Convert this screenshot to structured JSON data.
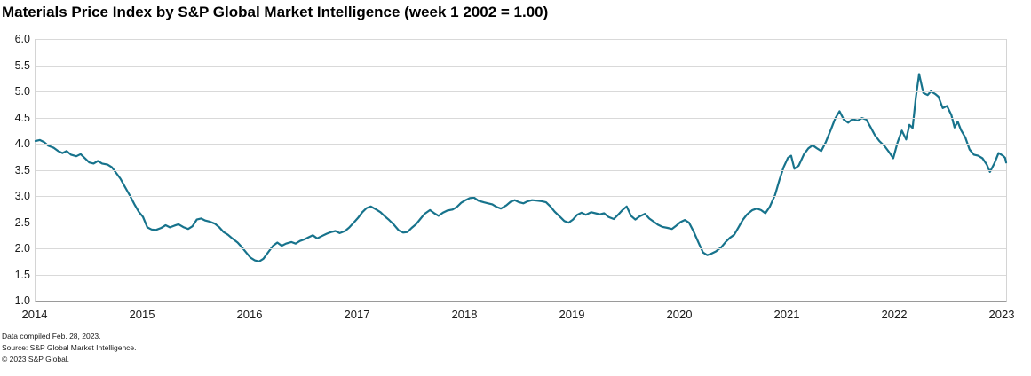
{
  "title": "Materials Price Index by S&P Global Market Intelligence (week 1 2002 = 1.00)",
  "footnotes": [
    "Data compiled Feb. 28, 2023.",
    "Source: S&P Global Market Intelligence.",
    "© 2023 S&P Global."
  ],
  "colors": {
    "line": "#17738c",
    "gridline": "#d9d9d9",
    "axis": "#9a9a9a",
    "text": "#1a1a1a",
    "title_text": "#000000"
  },
  "chart_data": {
    "type": "line",
    "title": "Materials Price Index by S&P Global Market Intelligence (week 1 2002 = 1.00)",
    "xlabel": "",
    "ylabel": "",
    "xlim": [
      2014,
      2023.03
    ],
    "ylim": [
      1.0,
      6.0
    ],
    "grid": "horizontal",
    "legend": "none",
    "x_ticks": {
      "values": [
        2014,
        2015,
        2016,
        2017,
        2018,
        2019,
        2020,
        2021,
        2022,
        2023
      ],
      "labels": [
        "2014",
        "2015",
        "2016",
        "2017",
        "2018",
        "2019",
        "2020",
        "2021",
        "2022",
        "2023"
      ]
    },
    "y_ticks": {
      "values": [
        6.0,
        5.5,
        5.0,
        4.5,
        4.0,
        3.5,
        3.0,
        2.5,
        2.0,
        1.5,
        1.0
      ],
      "labels": [
        "6.0",
        "5.5",
        "5.0",
        "4.5",
        "4.0",
        "3.5",
        "3.0",
        "2.5",
        "2.0",
        "1.5",
        "1.0"
      ]
    },
    "series": [
      {
        "name": "Materials Price Index",
        "color": "#17738c",
        "points": [
          [
            2014.0,
            4.05
          ],
          [
            2014.04,
            4.07
          ],
          [
            2014.08,
            4.03
          ],
          [
            2014.12,
            3.96
          ],
          [
            2014.17,
            3.92
          ],
          [
            2014.21,
            3.86
          ],
          [
            2014.25,
            3.82
          ],
          [
            2014.29,
            3.86
          ],
          [
            2014.33,
            3.79
          ],
          [
            2014.38,
            3.76
          ],
          [
            2014.42,
            3.8
          ],
          [
            2014.46,
            3.72
          ],
          [
            2014.5,
            3.64
          ],
          [
            2014.54,
            3.62
          ],
          [
            2014.58,
            3.67
          ],
          [
            2014.62,
            3.62
          ],
          [
            2014.67,
            3.6
          ],
          [
            2014.71,
            3.55
          ],
          [
            2014.75,
            3.44
          ],
          [
            2014.79,
            3.33
          ],
          [
            2014.83,
            3.18
          ],
          [
            2014.88,
            3.0
          ],
          [
            2014.92,
            2.84
          ],
          [
            2014.96,
            2.7
          ],
          [
            2015.0,
            2.6
          ],
          [
            2015.04,
            2.4
          ],
          [
            2015.08,
            2.36
          ],
          [
            2015.12,
            2.35
          ],
          [
            2015.17,
            2.39
          ],
          [
            2015.21,
            2.44
          ],
          [
            2015.25,
            2.4
          ],
          [
            2015.29,
            2.43
          ],
          [
            2015.33,
            2.46
          ],
          [
            2015.38,
            2.4
          ],
          [
            2015.42,
            2.37
          ],
          [
            2015.46,
            2.42
          ],
          [
            2015.5,
            2.55
          ],
          [
            2015.54,
            2.57
          ],
          [
            2015.58,
            2.53
          ],
          [
            2015.62,
            2.51
          ],
          [
            2015.67,
            2.47
          ],
          [
            2015.71,
            2.4
          ],
          [
            2015.75,
            2.31
          ],
          [
            2015.79,
            2.26
          ],
          [
            2015.83,
            2.19
          ],
          [
            2015.88,
            2.11
          ],
          [
            2015.92,
            2.02
          ],
          [
            2015.96,
            1.92
          ],
          [
            2016.0,
            1.82
          ],
          [
            2016.04,
            1.77
          ],
          [
            2016.08,
            1.75
          ],
          [
            2016.12,
            1.8
          ],
          [
            2016.17,
            1.94
          ],
          [
            2016.21,
            2.05
          ],
          [
            2016.25,
            2.11
          ],
          [
            2016.29,
            2.05
          ],
          [
            2016.33,
            2.09
          ],
          [
            2016.38,
            2.12
          ],
          [
            2016.42,
            2.09
          ],
          [
            2016.46,
            2.14
          ],
          [
            2016.5,
            2.17
          ],
          [
            2016.54,
            2.21
          ],
          [
            2016.58,
            2.25
          ],
          [
            2016.62,
            2.19
          ],
          [
            2016.67,
            2.24
          ],
          [
            2016.71,
            2.28
          ],
          [
            2016.75,
            2.31
          ],
          [
            2016.79,
            2.33
          ],
          [
            2016.83,
            2.29
          ],
          [
            2016.88,
            2.33
          ],
          [
            2016.92,
            2.4
          ],
          [
            2016.96,
            2.49
          ],
          [
            2017.0,
            2.58
          ],
          [
            2017.04,
            2.69
          ],
          [
            2017.08,
            2.77
          ],
          [
            2017.12,
            2.8
          ],
          [
            2017.17,
            2.74
          ],
          [
            2017.21,
            2.69
          ],
          [
            2017.25,
            2.61
          ],
          [
            2017.29,
            2.54
          ],
          [
            2017.33,
            2.46
          ],
          [
            2017.38,
            2.34
          ],
          [
            2017.42,
            2.3
          ],
          [
            2017.46,
            2.31
          ],
          [
            2017.5,
            2.39
          ],
          [
            2017.54,
            2.46
          ],
          [
            2017.58,
            2.56
          ],
          [
            2017.62,
            2.66
          ],
          [
            2017.67,
            2.73
          ],
          [
            2017.71,
            2.67
          ],
          [
            2017.75,
            2.62
          ],
          [
            2017.79,
            2.68
          ],
          [
            2017.83,
            2.72
          ],
          [
            2017.88,
            2.74
          ],
          [
            2017.92,
            2.79
          ],
          [
            2017.96,
            2.87
          ],
          [
            2018.0,
            2.92
          ],
          [
            2018.04,
            2.96
          ],
          [
            2018.08,
            2.97
          ],
          [
            2018.12,
            2.91
          ],
          [
            2018.17,
            2.88
          ],
          [
            2018.21,
            2.86
          ],
          [
            2018.25,
            2.84
          ],
          [
            2018.29,
            2.79
          ],
          [
            2018.33,
            2.76
          ],
          [
            2018.38,
            2.82
          ],
          [
            2018.42,
            2.89
          ],
          [
            2018.46,
            2.92
          ],
          [
            2018.5,
            2.88
          ],
          [
            2018.54,
            2.86
          ],
          [
            2018.58,
            2.9
          ],
          [
            2018.62,
            2.92
          ],
          [
            2018.67,
            2.91
          ],
          [
            2018.71,
            2.9
          ],
          [
            2018.75,
            2.88
          ],
          [
            2018.79,
            2.8
          ],
          [
            2018.83,
            2.7
          ],
          [
            2018.88,
            2.6
          ],
          [
            2018.92,
            2.52
          ],
          [
            2018.96,
            2.49
          ],
          [
            2019.0,
            2.55
          ],
          [
            2019.04,
            2.64
          ],
          [
            2019.08,
            2.68
          ],
          [
            2019.12,
            2.64
          ],
          [
            2019.17,
            2.69
          ],
          [
            2019.21,
            2.67
          ],
          [
            2019.25,
            2.65
          ],
          [
            2019.29,
            2.67
          ],
          [
            2019.33,
            2.6
          ],
          [
            2019.38,
            2.56
          ],
          [
            2019.42,
            2.64
          ],
          [
            2019.46,
            2.73
          ],
          [
            2019.5,
            2.8
          ],
          [
            2019.54,
            2.62
          ],
          [
            2019.58,
            2.55
          ],
          [
            2019.62,
            2.61
          ],
          [
            2019.67,
            2.66
          ],
          [
            2019.71,
            2.57
          ],
          [
            2019.75,
            2.51
          ],
          [
            2019.79,
            2.45
          ],
          [
            2019.83,
            2.41
          ],
          [
            2019.88,
            2.39
          ],
          [
            2019.92,
            2.37
          ],
          [
            2019.96,
            2.43
          ],
          [
            2020.0,
            2.5
          ],
          [
            2020.04,
            2.54
          ],
          [
            2020.08,
            2.49
          ],
          [
            2020.12,
            2.33
          ],
          [
            2020.17,
            2.1
          ],
          [
            2020.21,
            1.92
          ],
          [
            2020.25,
            1.87
          ],
          [
            2020.29,
            1.9
          ],
          [
            2020.33,
            1.94
          ],
          [
            2020.38,
            2.02
          ],
          [
            2020.42,
            2.12
          ],
          [
            2020.46,
            2.2
          ],
          [
            2020.5,
            2.26
          ],
          [
            2020.54,
            2.4
          ],
          [
            2020.58,
            2.54
          ],
          [
            2020.62,
            2.65
          ],
          [
            2020.67,
            2.73
          ],
          [
            2020.71,
            2.76
          ],
          [
            2020.75,
            2.73
          ],
          [
            2020.79,
            2.67
          ],
          [
            2020.83,
            2.79
          ],
          [
            2020.88,
            3.02
          ],
          [
            2020.92,
            3.3
          ],
          [
            2020.96,
            3.55
          ],
          [
            2021.0,
            3.73
          ],
          [
            2021.03,
            3.77
          ],
          [
            2021.06,
            3.52
          ],
          [
            2021.1,
            3.58
          ],
          [
            2021.15,
            3.8
          ],
          [
            2021.19,
            3.91
          ],
          [
            2021.23,
            3.97
          ],
          [
            2021.27,
            3.91
          ],
          [
            2021.31,
            3.86
          ],
          [
            2021.35,
            4.02
          ],
          [
            2021.4,
            4.27
          ],
          [
            2021.44,
            4.48
          ],
          [
            2021.48,
            4.62
          ],
          [
            2021.52,
            4.46
          ],
          [
            2021.56,
            4.4
          ],
          [
            2021.6,
            4.47
          ],
          [
            2021.65,
            4.44
          ],
          [
            2021.69,
            4.49
          ],
          [
            2021.73,
            4.46
          ],
          [
            2021.77,
            4.31
          ],
          [
            2021.81,
            4.16
          ],
          [
            2021.85,
            4.05
          ],
          [
            2021.9,
            3.95
          ],
          [
            2021.94,
            3.84
          ],
          [
            2021.98,
            3.72
          ],
          [
            2022.02,
            4.02
          ],
          [
            2022.06,
            4.25
          ],
          [
            2022.1,
            4.08
          ],
          [
            2022.13,
            4.36
          ],
          [
            2022.16,
            4.3
          ],
          [
            2022.19,
            4.88
          ],
          [
            2022.22,
            5.33
          ],
          [
            2022.26,
            4.97
          ],
          [
            2022.3,
            4.93
          ],
          [
            2022.33,
            5.0
          ],
          [
            2022.37,
            4.95
          ],
          [
            2022.4,
            4.9
          ],
          [
            2022.44,
            4.68
          ],
          [
            2022.48,
            4.72
          ],
          [
            2022.52,
            4.55
          ],
          [
            2022.55,
            4.31
          ],
          [
            2022.58,
            4.42
          ],
          [
            2022.61,
            4.26
          ],
          [
            2022.65,
            4.12
          ],
          [
            2022.69,
            3.89
          ],
          [
            2022.73,
            3.79
          ],
          [
            2022.77,
            3.77
          ],
          [
            2022.81,
            3.72
          ],
          [
            2022.85,
            3.6
          ],
          [
            2022.88,
            3.46
          ],
          [
            2022.92,
            3.62
          ],
          [
            2022.96,
            3.82
          ],
          [
            2023.0,
            3.77
          ],
          [
            2023.02,
            3.73
          ],
          [
            2023.03,
            3.64
          ]
        ]
      }
    ]
  }
}
